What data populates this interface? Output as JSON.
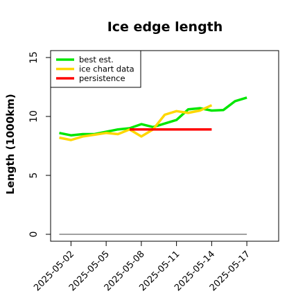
{
  "chart_data": {
    "type": "line",
    "title": "Ice edge length",
    "xlabel": "",
    "ylabel": "Length (1000km)",
    "xlim": [
      "2025-05-01",
      "2025-05-18"
    ],
    "ylim": [
      0,
      15
    ],
    "y_ticks": [
      0,
      5,
      10,
      15
    ],
    "x_ticks": [
      "2025-05-02",
      "2025-05-05",
      "2025-05-08",
      "2025-05-11",
      "2025-05-14",
      "2025-05-17"
    ],
    "legend_position": "top-left",
    "grid": false,
    "series": [
      {
        "name": "best est.",
        "color": "#00e600",
        "points": [
          [
            "2025-05-01",
            8.6
          ],
          [
            "2025-05-02",
            8.4
          ],
          [
            "2025-05-03",
            8.5
          ],
          [
            "2025-05-04",
            8.5
          ],
          [
            "2025-05-05",
            8.7
          ],
          [
            "2025-05-06",
            8.9
          ],
          [
            "2025-05-07",
            9.0
          ],
          [
            "2025-05-08",
            9.35
          ],
          [
            "2025-05-09",
            9.1
          ],
          [
            "2025-05-10",
            9.4
          ],
          [
            "2025-05-11",
            9.7
          ],
          [
            "2025-05-12",
            10.6
          ],
          [
            "2025-05-13",
            10.7
          ],
          [
            "2025-05-14",
            10.5
          ],
          [
            "2025-05-15",
            10.55
          ],
          [
            "2025-05-16",
            11.3
          ],
          [
            "2025-05-17",
            11.6
          ]
        ]
      },
      {
        "name": "ice chart data",
        "color": "#ffd700",
        "points": [
          [
            "2025-05-01",
            8.2
          ],
          [
            "2025-05-02",
            8.0
          ],
          [
            "2025-05-03",
            8.3
          ],
          [
            "2025-05-04",
            8.45
          ],
          [
            "2025-05-05",
            8.6
          ],
          [
            "2025-05-06",
            8.5
          ],
          [
            "2025-05-07",
            8.9
          ],
          [
            "2025-05-08",
            8.3
          ],
          [
            "2025-05-09",
            8.9
          ],
          [
            "2025-05-10",
            10.15
          ],
          [
            "2025-05-11",
            10.45
          ],
          [
            "2025-05-12",
            10.3
          ],
          [
            "2025-05-13",
            10.5
          ],
          [
            "2025-05-14",
            10.95
          ]
        ]
      },
      {
        "name": "persistence",
        "color": "#ff0000",
        "points": [
          [
            "2025-05-07",
            8.9
          ],
          [
            "2025-05-14",
            8.9
          ]
        ]
      },
      {
        "color": "#808080",
        "points": [
          [
            "2025-05-01",
            0
          ],
          [
            "2025-05-17",
            0
          ]
        ]
      }
    ]
  }
}
